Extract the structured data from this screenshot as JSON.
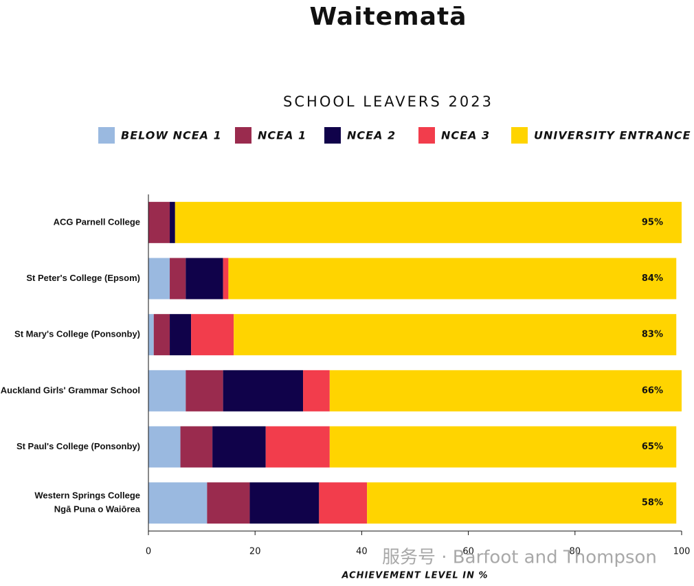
{
  "chart_data": {
    "type": "stacked-bar-horizontal",
    "title": "Waitematā",
    "subtitle": "SCHOOL LEAVERS 2023",
    "x_label": "ACHIEVEMENT LEVEL IN %",
    "watermark": "服务号 · Barfoot and Thompson",
    "categories": [
      "ACG Parnell College",
      "St Peter's College (Epsom)",
      "St Mary's College (Ponsonby)",
      "Auckland Girls' Grammar School",
      "St Paul's College (Ponsonby)",
      [
        "Western Springs College",
        "Ngā Puna o Waiōrea"
      ]
    ],
    "series": [
      {
        "name": "BELOW NCEA 1",
        "color": "#9ab9e0",
        "values": [
          0,
          4,
          1,
          7,
          6,
          11
        ]
      },
      {
        "name": "NCEA 1",
        "color": "#9a2b4e",
        "values": [
          4,
          3,
          3,
          7,
          6,
          8
        ]
      },
      {
        "name": "NCEA 2",
        "color": "#10024a",
        "values": [
          1,
          7,
          4,
          15,
          10,
          13
        ]
      },
      {
        "name": "NCEA 3",
        "color": "#f23d4c",
        "values": [
          0,
          1,
          8,
          5,
          12,
          9
        ]
      },
      {
        "name": "UNIVERSITY ENTRANCE",
        "color": "#ffd400",
        "values": [
          95,
          84,
          83,
          66,
          65,
          58
        ],
        "value_labels": [
          "95%",
          "84%",
          "83%",
          "66%",
          "65%",
          "58%"
        ]
      }
    ],
    "xlim": [
      0,
      100
    ],
    "xticks": [
      0,
      20,
      40,
      60,
      80,
      100
    ]
  }
}
